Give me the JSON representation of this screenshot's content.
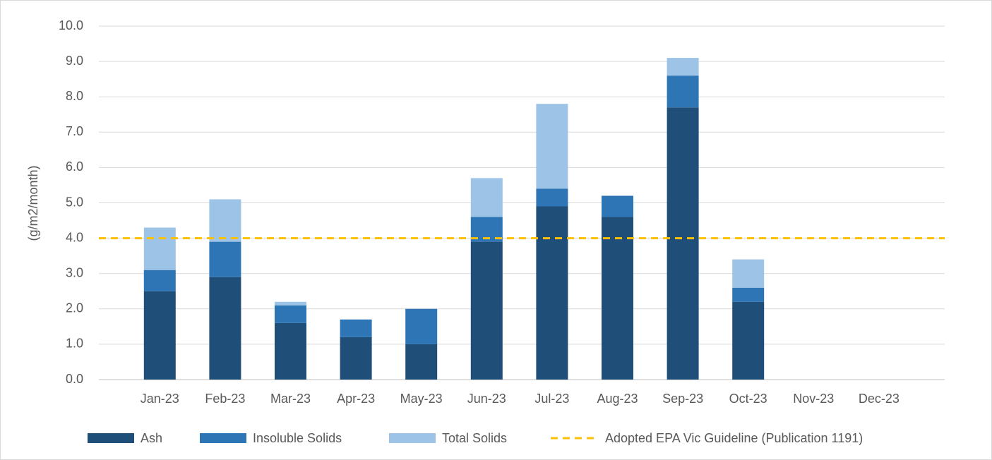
{
  "chart_data": {
    "type": "stacked_bar",
    "y_label": "(g/m2/month)",
    "categories": [
      "Jan-23",
      "Feb-23",
      "Mar-23",
      "Apr-23",
      "May-23",
      "Jun-23",
      "Jul-23",
      "Aug-23",
      "Sep-23",
      "Oct-23",
      "Nov-23",
      "Dec-23"
    ],
    "series": [
      {
        "name": "Ash",
        "color": "#1f4e79",
        "values": [
          2.5,
          2.9,
          1.6,
          1.2,
          1.0,
          3.9,
          4.9,
          4.6,
          7.7,
          2.2,
          null,
          null
        ]
      },
      {
        "name": "Insoluble Solids",
        "color": "#2e75b6",
        "values": [
          0.6,
          1.0,
          0.5,
          0.5,
          1.0,
          0.7,
          0.5,
          0.6,
          0.9,
          0.4,
          null,
          null
        ]
      },
      {
        "name": "Total Solids",
        "color": "#9dc3e6",
        "values": [
          1.2,
          1.2,
          0.1,
          0,
          0,
          1.1,
          2.4,
          0,
          0.5,
          0.8,
          null,
          null
        ]
      }
    ],
    "guideline": {
      "name": "Adopted EPA Vic Guideline (Publication 1191)",
      "color": "#ffc000",
      "value": 4
    },
    "ylim": [
      0,
      10
    ],
    "yticks": [
      {
        "value": 0,
        "label": "0.0"
      },
      {
        "value": 1,
        "label": "1.0"
      },
      {
        "value": 2,
        "label": "2.0"
      },
      {
        "value": 3,
        "label": "3.0"
      },
      {
        "value": 4,
        "label": "4.0"
      },
      {
        "value": 5,
        "label": "5.0"
      },
      {
        "value": 6,
        "label": "6.0"
      },
      {
        "value": 7,
        "label": "7.0"
      },
      {
        "value": 8,
        "label": "8.0"
      },
      {
        "value": 9,
        "label": "9.0"
      },
      {
        "value": 10,
        "label": "10.0"
      }
    ],
    "grid": true
  }
}
